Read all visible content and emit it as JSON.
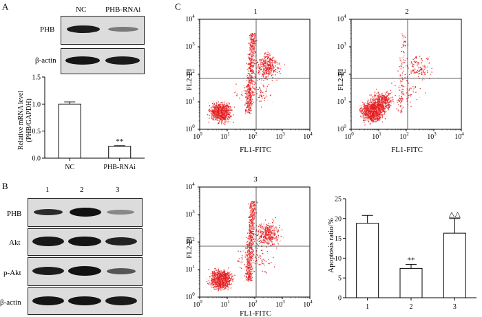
{
  "panel_a": {
    "letter": "A",
    "lane_labels": [
      "NC",
      "PHB-RNAi"
    ],
    "blot_rows": [
      "PHB",
      "β-actin"
    ],
    "chart_data": {
      "type": "bar",
      "categories": [
        "NC",
        "PHB-RNAi"
      ],
      "values": [
        1.0,
        0.22
      ],
      "errors": [
        0.04,
        0.01
      ],
      "ylabel": "Relative mRNA level (PHB/GAPDH)",
      "ylabel_line1": "Relative mRNA level",
      "ylabel_line2": "(PHB/GAPDH)",
      "ylim": [
        0,
        1.5
      ],
      "yticks": [
        "0.0",
        "0.5",
        "1.0",
        "1.5"
      ],
      "annotations": [
        "",
        "**"
      ]
    }
  },
  "panel_b": {
    "letter": "B",
    "lane_labels": [
      "1",
      "2",
      "3"
    ],
    "blot_rows": [
      "PHB",
      "Akt",
      "p-Akt",
      "β-actin"
    ]
  },
  "panel_c": {
    "letter": "C",
    "plots": [
      {
        "title": "1",
        "xlabel": "FL1-FITC",
        "ylabel": "FL2-PI"
      },
      {
        "title": "2",
        "xlabel": "FL1-FITC",
        "ylabel": "FL2-PI"
      },
      {
        "title": "3",
        "xlabel": "FL1-FITC",
        "ylabel": "FL2-PI"
      }
    ],
    "axis_ticks": {
      "base": "10",
      "exponents": [
        "0",
        "1",
        "2",
        "3",
        "4"
      ]
    },
    "chart_data": {
      "type": "bar",
      "categories": [
        "1",
        "2",
        "3"
      ],
      "values": [
        18.8,
        7.4,
        16.3
      ],
      "errors": [
        2.0,
        1.0,
        3.7
      ],
      "ylabel": "Apoptosis ratio/%",
      "ylim": [
        0,
        25
      ],
      "yticks": [
        "0",
        "5",
        "10",
        "15",
        "20",
        "25"
      ],
      "annotations": [
        "",
        "**",
        "△△"
      ]
    }
  },
  "colors": {
    "dots": "#e31a1c",
    "dots_light": "#f4a3a3",
    "axis": "#000000"
  }
}
